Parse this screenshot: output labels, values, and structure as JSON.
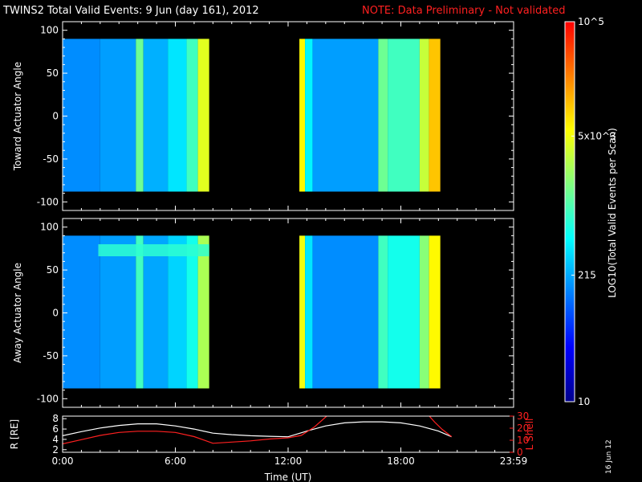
{
  "header": {
    "title": "TWINS2 Total Valid Events:  9 Jun (day 161), 2012",
    "note": "NOTE: Data Preliminary - Not validated",
    "note_color": "#ff2020"
  },
  "date_stamp": "16 Jun 12",
  "colorbar": {
    "label": "LOG10(Total Valid Events per Scan)",
    "tick_labels": [
      "10",
      "215",
      "5x10^3",
      "10^5"
    ],
    "scale": "log",
    "range": [
      10,
      100000
    ],
    "colors": [
      "#00008c",
      "#0000ff",
      "#0080ff",
      "#00ffff",
      "#80ff80",
      "#ffff00",
      "#ff8000",
      "#ff0000"
    ]
  },
  "chart_data": [
    {
      "type": "heatmap",
      "panel": "toward",
      "ylabel": "Toward Actuator Angle",
      "ylim": [
        -110,
        110
      ],
      "yticks": [
        "100",
        "50",
        "0",
        "-50",
        "-100"
      ],
      "xlim": [
        0,
        24
      ],
      "data_angle_range": [
        -88,
        90
      ],
      "time_bands_hours": [
        {
          "start": 0.0,
          "end": 2.0,
          "level": 0.3
        },
        {
          "start": 2.0,
          "end": 3.9,
          "level": 0.32
        },
        {
          "start": 3.9,
          "end": 4.3,
          "level": 0.55
        },
        {
          "start": 4.3,
          "end": 5.6,
          "level": 0.34
        },
        {
          "start": 5.6,
          "end": 6.6,
          "level": 0.4
        },
        {
          "start": 6.6,
          "end": 7.2,
          "level": 0.5
        },
        {
          "start": 7.2,
          "end": 7.8,
          "level": 0.68
        },
        {
          "start": 12.6,
          "end": 12.9,
          "level": 0.72
        },
        {
          "start": 12.9,
          "end": 13.3,
          "level": 0.42
        },
        {
          "start": 13.3,
          "end": 16.8,
          "level": 0.32
        },
        {
          "start": 16.8,
          "end": 17.3,
          "level": 0.55
        },
        {
          "start": 17.3,
          "end": 19.0,
          "level": 0.5
        },
        {
          "start": 19.0,
          "end": 19.5,
          "level": 0.65
        },
        {
          "start": 19.5,
          "end": 20.1,
          "level": 0.78
        }
      ]
    },
    {
      "type": "heatmap",
      "panel": "away",
      "ylabel": "Away Actuator Angle",
      "ylim": [
        -110,
        110
      ],
      "yticks": [
        "100",
        "50",
        "0",
        "-50",
        "-100"
      ],
      "xlim": [
        0,
        24
      ],
      "data_angle_range": [
        -88,
        90
      ],
      "time_bands_hours": [
        {
          "start": 0.0,
          "end": 2.0,
          "level": 0.3
        },
        {
          "start": 2.0,
          "end": 3.9,
          "level": 0.32
        },
        {
          "start": 3.9,
          "end": 4.3,
          "level": 0.5
        },
        {
          "start": 4.3,
          "end": 5.6,
          "level": 0.33
        },
        {
          "start": 5.6,
          "end": 6.6,
          "level": 0.38
        },
        {
          "start": 6.6,
          "end": 7.2,
          "level": 0.45
        },
        {
          "start": 7.2,
          "end": 7.8,
          "level": 0.62
        },
        {
          "start": 12.6,
          "end": 12.9,
          "level": 0.7
        },
        {
          "start": 12.9,
          "end": 13.3,
          "level": 0.4
        },
        {
          "start": 13.3,
          "end": 16.8,
          "level": 0.3
        },
        {
          "start": 16.8,
          "end": 17.3,
          "level": 0.5
        },
        {
          "start": 17.3,
          "end": 19.0,
          "level": 0.45
        },
        {
          "start": 19.0,
          "end": 19.5,
          "level": 0.58
        },
        {
          "start": 19.5,
          "end": 20.1,
          "level": 0.72
        }
      ],
      "highlight_band": {
        "start": 1.9,
        "end": 7.8,
        "angle_low": 66,
        "angle_high": 80,
        "level": 0.48
      }
    },
    {
      "type": "line",
      "panel": "orbit",
      "xlabel": "Time (UT)",
      "xlim": [
        0,
        24
      ],
      "xtick_labels": [
        "0:00",
        "6:00",
        "12:00",
        "18:00",
        "23:59"
      ],
      "left_axis": {
        "label": "R [RE]",
        "ylim": [
          1.5,
          8.5
        ],
        "ticks": [
          "8",
          "6",
          "4",
          "2"
        ],
        "color": "#ffffff"
      },
      "right_axis": {
        "label": "L Shell",
        "ylim": [
          0,
          30
        ],
        "ticks": [
          "30",
          "20",
          "10",
          "0"
        ],
        "color": "#ff2020"
      },
      "series": [
        {
          "axis": "left",
          "color": "#ffffff",
          "x": [
            0.0,
            1.0,
            2.0,
            3.0,
            4.0,
            5.0,
            6.0,
            7.0,
            8.0,
            9.0,
            10.0,
            11.0,
            12.0,
            13.0,
            14.0,
            15.0,
            16.0,
            17.0,
            18.0,
            19.0,
            20.0,
            20.7
          ],
          "y": [
            4.7,
            5.5,
            6.2,
            6.7,
            7.0,
            7.0,
            6.6,
            6.0,
            5.2,
            4.9,
            4.7,
            4.6,
            4.5,
            5.6,
            6.6,
            7.2,
            7.4,
            7.4,
            7.2,
            6.6,
            5.6,
            4.5
          ]
        },
        {
          "axis": "right",
          "color": "#ff2020",
          "x": [
            0.0,
            1.0,
            2.0,
            3.0,
            4.0,
            5.0,
            6.0,
            7.0,
            8.0,
            9.0,
            10.0,
            11.0,
            12.0,
            12.7,
            13.4,
            14.2
          ],
          "y": [
            7.0,
            10.5,
            14.0,
            16.5,
            17.5,
            17.5,
            16.5,
            13.0,
            7.5,
            8.5,
            9.5,
            11.0,
            12.0,
            14.0,
            21.0,
            32.0
          ]
        },
        {
          "axis": "right",
          "color": "#ff2020",
          "x": [
            19.4,
            19.8,
            20.2,
            20.7
          ],
          "y": [
            32.0,
            25.0,
            19.0,
            13.0
          ]
        }
      ]
    }
  ]
}
